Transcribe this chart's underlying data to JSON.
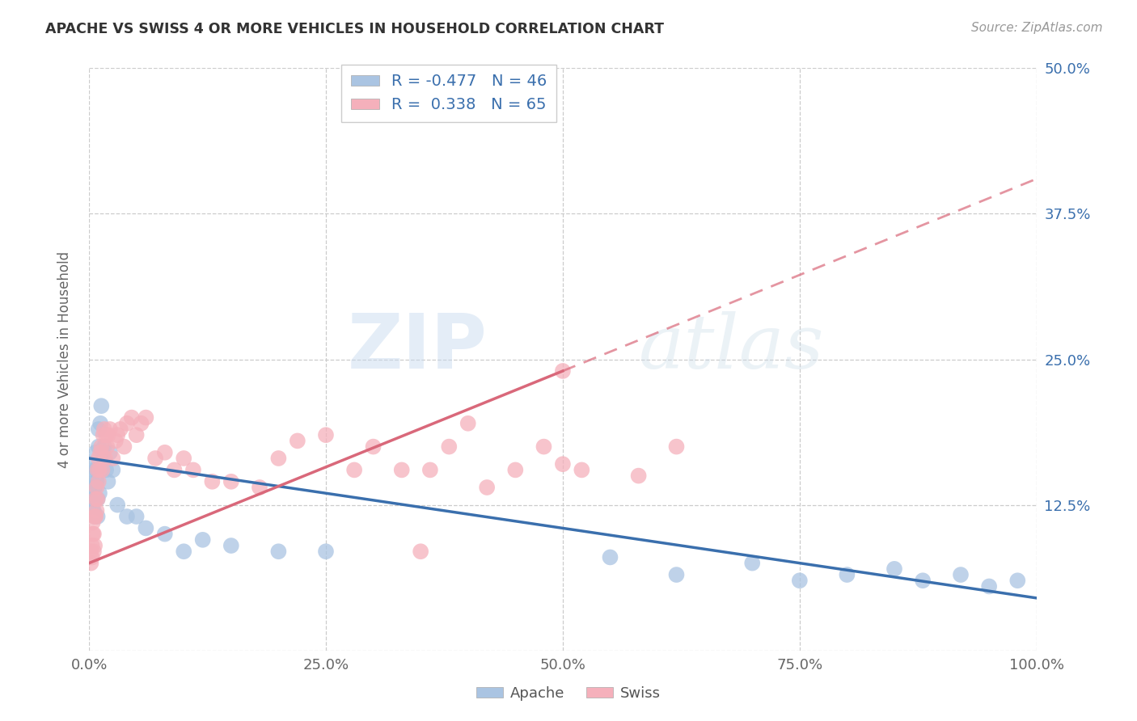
{
  "title": "APACHE VS SWISS 4 OR MORE VEHICLES IN HOUSEHOLD CORRELATION CHART",
  "source": "Source: ZipAtlas.com",
  "ylabel": "4 or more Vehicles in Household",
  "xlim": [
    0,
    1.0
  ],
  "ylim": [
    0,
    0.5
  ],
  "xticks": [
    0.0,
    0.25,
    0.5,
    0.75,
    1.0
  ],
  "yticks": [
    0.0,
    0.125,
    0.25,
    0.375,
    0.5
  ],
  "xtick_labels": [
    "0.0%",
    "25.0%",
    "50.0%",
    "75.0%",
    "100.0%"
  ],
  "ytick_labels": [
    "",
    "12.5%",
    "25.0%",
    "37.5%",
    "50.0%"
  ],
  "apache_R": -0.477,
  "apache_N": 46,
  "swiss_R": 0.338,
  "swiss_N": 65,
  "apache_color": "#aac4e2",
  "swiss_color": "#f5b0bb",
  "apache_line_color": "#3a6fad",
  "swiss_line_color": "#d9687a",
  "watermark_zip": "ZIP",
  "watermark_atlas": "atlas",
  "apache_x": [
    0.002,
    0.003,
    0.003,
    0.004,
    0.004,
    0.005,
    0.005,
    0.006,
    0.006,
    0.007,
    0.007,
    0.008,
    0.008,
    0.009,
    0.009,
    0.01,
    0.01,
    0.011,
    0.012,
    0.013,
    0.015,
    0.016,
    0.018,
    0.02,
    0.022,
    0.025,
    0.03,
    0.04,
    0.05,
    0.06,
    0.08,
    0.1,
    0.12,
    0.15,
    0.2,
    0.25,
    0.55,
    0.62,
    0.7,
    0.75,
    0.8,
    0.85,
    0.88,
    0.92,
    0.95,
    0.98
  ],
  "apache_y": [
    0.16,
    0.14,
    0.13,
    0.145,
    0.12,
    0.155,
    0.12,
    0.14,
    0.115,
    0.13,
    0.17,
    0.145,
    0.155,
    0.13,
    0.115,
    0.19,
    0.175,
    0.135,
    0.195,
    0.21,
    0.165,
    0.175,
    0.155,
    0.145,
    0.17,
    0.155,
    0.125,
    0.115,
    0.115,
    0.105,
    0.1,
    0.085,
    0.095,
    0.09,
    0.085,
    0.085,
    0.08,
    0.065,
    0.075,
    0.06,
    0.065,
    0.07,
    0.06,
    0.065,
    0.055,
    0.06
  ],
  "swiss_x": [
    0.002,
    0.002,
    0.003,
    0.003,
    0.004,
    0.004,
    0.005,
    0.005,
    0.006,
    0.006,
    0.007,
    0.007,
    0.008,
    0.008,
    0.009,
    0.009,
    0.01,
    0.01,
    0.011,
    0.012,
    0.013,
    0.014,
    0.015,
    0.016,
    0.017,
    0.018,
    0.019,
    0.02,
    0.022,
    0.025,
    0.028,
    0.03,
    0.033,
    0.037,
    0.04,
    0.045,
    0.05,
    0.055,
    0.06,
    0.07,
    0.08,
    0.09,
    0.1,
    0.11,
    0.13,
    0.15,
    0.18,
    0.22,
    0.28,
    0.35,
    0.38,
    0.42,
    0.45,
    0.48,
    0.5,
    0.52,
    0.2,
    0.25,
    0.3,
    0.33,
    0.36,
    0.4,
    0.5,
    0.58,
    0.62
  ],
  "swiss_y": [
    0.085,
    0.075,
    0.09,
    0.08,
    0.1,
    0.11,
    0.1,
    0.085,
    0.115,
    0.09,
    0.13,
    0.115,
    0.14,
    0.12,
    0.13,
    0.155,
    0.145,
    0.165,
    0.155,
    0.17,
    0.175,
    0.155,
    0.185,
    0.19,
    0.165,
    0.185,
    0.175,
    0.185,
    0.19,
    0.165,
    0.18,
    0.185,
    0.19,
    0.175,
    0.195,
    0.2,
    0.185,
    0.195,
    0.2,
    0.165,
    0.17,
    0.155,
    0.165,
    0.155,
    0.145,
    0.145,
    0.14,
    0.18,
    0.155,
    0.085,
    0.175,
    0.14,
    0.155,
    0.175,
    0.16,
    0.155,
    0.165,
    0.185,
    0.175,
    0.155,
    0.155,
    0.195,
    0.24,
    0.15,
    0.175
  ]
}
